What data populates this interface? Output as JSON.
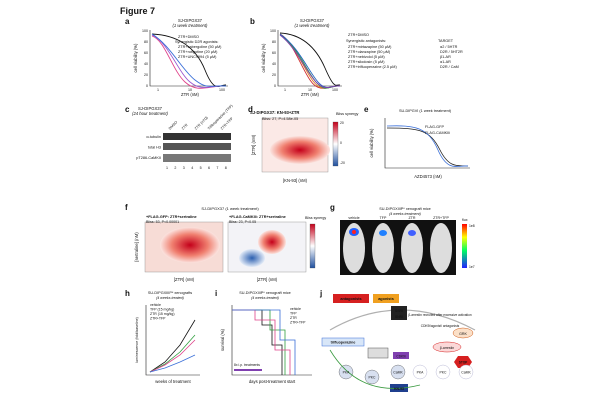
{
  "figure_title": "Figure 7",
  "panels": {
    "a": {
      "letter": "a",
      "title": "SJ-DIPGX37",
      "subtitle": "(1 week treatment)",
      "ylabel": "cell viability (%)",
      "xlabel": "ZTR (nM)",
      "legend_title": "Synergistic D2R agonists:",
      "legend": [
        "ZTR+DMSO",
        "ZTR+cabergoline (50 µM)",
        "ZTR+rotigotine (20 µM)",
        "ZTR+UNC9994 (5 µM)"
      ],
      "yticks": [
        "0",
        "20",
        "40",
        "60",
        "80",
        "100"
      ],
      "xticks": [
        "1",
        "10",
        "100"
      ]
    },
    "b": {
      "letter": "b",
      "title": "SJ-DIPGX37",
      "subtitle": "(1 week treatment)",
      "ylabel": "cell viability (%)",
      "xlabel": "ZTR (nM)",
      "legend_top": "ZTR+DMSO",
      "legend_title": "Synergistic antagonists:",
      "target_title": "TARGET",
      "legend": [
        "ZTR+mirtazapine (50 µM)",
        "ZTR+olanzapine (50 µM)",
        "ZTR+nebivolol (5 µM)",
        "ZTR+silodosin (5 µM)",
        "ZTR+trifluoperazine (2.5 µM)"
      ],
      "targets": [
        "α2 / 5HTR",
        "D2R / 5HT2R",
        "β1-AR",
        "α1-AR",
        "D2R / CaM"
      ],
      "yticks": [
        "0",
        "20",
        "40",
        "60",
        "80",
        "100"
      ],
      "xticks": [
        "1",
        "10",
        "100"
      ]
    },
    "c": {
      "letter": "c",
      "title": "SJ-DIPGX37",
      "subtitle": "(24 hour treatment)",
      "lanes_top": [
        "DMSO",
        "ZTR",
        "ZTR (nTD)",
        "Trifluoperazine (TFP)",
        "ZTR+TFP"
      ],
      "bands": [
        "α-tubulin",
        "total H3",
        "pT286-CaMKII"
      ],
      "lane_numbers": [
        "1",
        "2",
        "3",
        "4",
        "5",
        "6",
        "7",
        "8"
      ]
    },
    "d": {
      "letter": "d",
      "title": "SJ-DIPGX37: KN-93+ZTR",
      "bliss": "Bliss: 27, P=4.58e-05",
      "ylabel": "[ZTR] (nM)",
      "xlabel": "[KN-93] (nM)",
      "colorbar_title": "Bliss synergy",
      "colorbar_ticks": [
        "20",
        "0",
        "-20"
      ]
    },
    "e": {
      "letter": "e",
      "title": "SU-DIPGVI (1 week treatment)",
      "legend": [
        "FLAG-GFP",
        "FLAG-CAMKIIi"
      ],
      "ylabel": "cell viability (%)",
      "xlabel": "AZD4573 (nM)"
    },
    "f": {
      "letter": "f",
      "title": "SJ-DIPGX37 (1 week treatment)",
      "left_title": "+FLAG-GFP: ZTR+sertraline",
      "left_bliss": "Bliss: 53, P<0.00001",
      "right_title": "+FLAG-CaMKIIi: ZTR+sertraline",
      "right_bliss": "Bliss: 23, P<0.05",
      "ylabel": "[sertraline] (nM)",
      "xlabel": "[ZTR] (nM)",
      "colorbar_title": "Bliss synergy"
    },
    "g": {
      "letter": "g",
      "title": "SU-DIPGXIIIP* xenograft mice",
      "subtitle": "(4 weeks treatment)",
      "groups": [
        "vehicle",
        "TFP",
        "ZTR",
        "ZTR+TFP"
      ],
      "flux_label": "flux",
      "flux_high": "1e8",
      "flux_low": "1e7"
    },
    "h": {
      "letter": "h",
      "title": "SU-DIPGXIIIP* xenografts",
      "subtitle": "(4 weeks treated)",
      "legend": [
        "vehicle",
        "TFP (15 mg/kg)",
        "ZTR (15 mg/kg)",
        "ZTR+TFP"
      ],
      "ylabel": "luminescence (fold/baseline)",
      "xlabel": "weeks of treatment"
    },
    "i": {
      "letter": "i",
      "title": "SU-DIPGXIIIP* xenograft mice",
      "subtitle": "(4 weeks treated)",
      "legend": [
        "vehicle",
        "TFP",
        "ZTR",
        "ZTR+TFP"
      ],
      "ylabel": "survival (%)",
      "xlabel": "days post-treatment start",
      "note": "8x i.p. treatments"
    },
    "j": {
      "letter": "j",
      "antagonists": "antagonists",
      "agonists": "agonists",
      "ssri": "SSRI",
      "snri": "SNRI",
      "trifluoperazine": "trifluoperazine",
      "arrestin_note": "β-arrestin recruited after excessive activation",
      "cdk9_note": "CDK9i/agonist/ antagonists",
      "grk": "GRK",
      "arrestin": "β-arrestin",
      "stop": "STOP",
      "cdk9i": "CDK9i",
      "kn93": "KN-93",
      "kinases": [
        "PKA",
        "PKC",
        "CaMK"
      ],
      "kinases_off": [
        "PKA",
        "PKC",
        "CaMK"
      ]
    }
  }
}
